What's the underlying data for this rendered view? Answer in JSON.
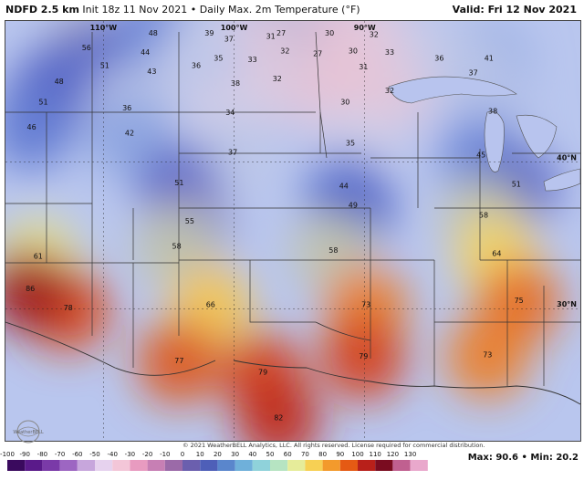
{
  "header": {
    "product": "NDFD 2.5 km",
    "init": "Init 18z 11 Nov 2021",
    "field": "• Daily Max. 2m Temperature (°F)",
    "valid": "Valid: Fri 12 Nov 2021"
  },
  "map": {
    "region": "Central United States",
    "lon_labels": [
      "110°W",
      "100°W",
      "90°W"
    ],
    "lat_labels": [
      "40°N",
      "30°N"
    ],
    "temperatures": [
      {
        "v": "48",
        "x": -106.2,
        "y": 48.6
      },
      {
        "v": "39",
        "x": -101.9,
        "y": 48.6
      },
      {
        "v": "37",
        "x": -100.4,
        "y": 48.2
      },
      {
        "v": "31",
        "x": -97.2,
        "y": 48.4
      },
      {
        "v": "27",
        "x": -96.4,
        "y": 48.6
      },
      {
        "v": "30",
        "x": -92.7,
        "y": 48.6
      },
      {
        "v": "32",
        "x": -89.3,
        "y": 48.5
      },
      {
        "v": "56",
        "x": -111.3,
        "y": 47.6
      },
      {
        "v": "44",
        "x": -106.8,
        "y": 47.3
      },
      {
        "v": "35",
        "x": -101.2,
        "y": 46.9
      },
      {
        "v": "33",
        "x": -98.6,
        "y": 46.8
      },
      {
        "v": "32",
        "x": -96.1,
        "y": 47.4
      },
      {
        "v": "27",
        "x": -93.6,
        "y": 47.2
      },
      {
        "v": "30",
        "x": -90.9,
        "y": 47.4
      },
      {
        "v": "33",
        "x": -88.1,
        "y": 47.3
      },
      {
        "v": "51",
        "x": -109.9,
        "y": 46.4
      },
      {
        "v": "43",
        "x": -106.3,
        "y": 46.0
      },
      {
        "v": "36",
        "x": -102.9,
        "y": 46.4
      },
      {
        "v": "31",
        "x": -90.1,
        "y": 46.3
      },
      {
        "v": "36",
        "x": -84.3,
        "y": 46.9
      },
      {
        "v": "41",
        "x": -80.5,
        "y": 46.9
      },
      {
        "v": "48",
        "x": -113.4,
        "y": 45.3
      },
      {
        "v": "38",
        "x": -99.9,
        "y": 45.2
      },
      {
        "v": "32",
        "x": -96.7,
        "y": 45.5
      },
      {
        "v": "32",
        "x": -88.1,
        "y": 44.7
      },
      {
        "v": "37",
        "x": -81.7,
        "y": 45.9
      },
      {
        "v": "51",
        "x": -114.6,
        "y": 43.9
      },
      {
        "v": "36",
        "x": -108.2,
        "y": 43.5
      },
      {
        "v": "34",
        "x": -100.3,
        "y": 43.2
      },
      {
        "v": "30",
        "x": -91.5,
        "y": 43.9
      },
      {
        "v": "38",
        "x": -80.2,
        "y": 43.3
      },
      {
        "v": "46",
        "x": -115.5,
        "y": 42.2
      },
      {
        "v": "42",
        "x": -108.0,
        "y": 41.8
      },
      {
        "v": "37",
        "x": -100.1,
        "y": 40.5
      },
      {
        "v": "35",
        "x": -91.1,
        "y": 41.1
      },
      {
        "v": "45",
        "x": -81.1,
        "y": 40.3
      },
      {
        "v": "51",
        "x": -104.2,
        "y": 38.4
      },
      {
        "v": "44",
        "x": -91.6,
        "y": 38.2
      },
      {
        "v": "51",
        "x": -78.4,
        "y": 38.3
      },
      {
        "v": "55",
        "x": -103.4,
        "y": 35.8
      },
      {
        "v": "49",
        "x": -90.9,
        "y": 36.9
      },
      {
        "v": "58",
        "x": -80.9,
        "y": 36.2
      },
      {
        "v": "61",
        "x": -115.0,
        "y": 33.4
      },
      {
        "v": "58",
        "x": -104.4,
        "y": 34.1
      },
      {
        "v": "58",
        "x": -92.4,
        "y": 33.8
      },
      {
        "v": "64",
        "x": -79.9,
        "y": 33.6
      },
      {
        "v": "78",
        "x": -112.7,
        "y": 29.9
      },
      {
        "v": "66",
        "x": -101.8,
        "y": 30.1
      },
      {
        "v": "73",
        "x": -89.9,
        "y": 30.1
      },
      {
        "v": "75",
        "x": -78.2,
        "y": 30.4
      },
      {
        "v": "77",
        "x": -104.2,
        "y": 26.3
      },
      {
        "v": "79",
        "x": -97.8,
        "y": 25.5
      },
      {
        "v": "79",
        "x": -90.1,
        "y": 26.6
      },
      {
        "v": "73",
        "x": -80.6,
        "y": 26.7
      },
      {
        "v": "82",
        "x": -96.6,
        "y": 22.4
      },
      {
        "v": "86",
        "x": -115.6,
        "y": 31.2
      }
    ]
  },
  "colorbar": {
    "ticks": [
      "-100",
      "-90",
      "-80",
      "-70",
      "-60",
      "-50",
      "-40",
      "-30",
      "-20",
      "-10",
      "0",
      "10",
      "20",
      "30",
      "40",
      "50",
      "60",
      "70",
      "80",
      "90",
      "100",
      "110",
      "120",
      "130"
    ],
    "colors": [
      "#3a0a5e",
      "#5a1a8a",
      "#7a3aa8",
      "#9d66c2",
      "#c7a6dc",
      "#e6d2ee",
      "#f3c6d8",
      "#e89bc0",
      "#c77fb4",
      "#9b6aa8",
      "#6b5fae",
      "#4e5fb8",
      "#5a86cc",
      "#6fb0da",
      "#8fd2da",
      "#b6e4c2",
      "#e6ec9a",
      "#f7d054",
      "#f39a2c",
      "#e55a14",
      "#b8201a",
      "#7a0c20",
      "#c06090",
      "#e9a8cc"
    ]
  },
  "stats": {
    "text": "Max: 90.6 • Min: 20.2"
  },
  "credit": "© 2021 WeatherBELL Analytics, LLC. All rights reserved. License required for commercial distribution.",
  "logo": {
    "text": "WeatherBELL"
  }
}
